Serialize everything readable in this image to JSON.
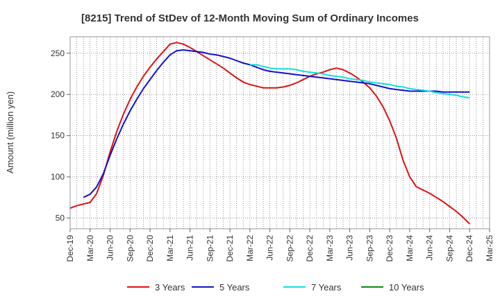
{
  "chart_data": {
    "type": "line",
    "title": "[8215]  Trend of StDev of 12-Month Moving Sum of Ordinary Incomes",
    "ylabel": "Amount (million yen)",
    "xlabel": "",
    "x_ticks": [
      "Dec-19",
      "Mar-20",
      "Jun-20",
      "Sep-20",
      "Dec-20",
      "Mar-21",
      "Jun-21",
      "Sep-21",
      "Dec-21",
      "Mar-22",
      "Jun-22",
      "Sep-22",
      "Dec-22",
      "Mar-23",
      "Jun-23",
      "Sep-23",
      "Dec-23",
      "Mar-24",
      "Jun-24",
      "Sep-24",
      "Dec-24",
      "Mar-25"
    ],
    "y_ticks": [
      50,
      100,
      150,
      200,
      250
    ],
    "ylim": [
      37,
      270
    ],
    "grid": "dotted",
    "legend_position": "bottom",
    "series": [
      {
        "name": "3 Years",
        "color": "#dd1111",
        "x": [
          "Dec-19",
          "Jan-20",
          "Feb-20",
          "Mar-20",
          "Apr-20",
          "May-20",
          "Jun-20",
          "Jul-20",
          "Aug-20",
          "Sep-20",
          "Oct-20",
          "Nov-20",
          "Dec-20",
          "Jan-21",
          "Feb-21",
          "Mar-21",
          "Apr-21",
          "May-21",
          "Jun-21",
          "Jul-21",
          "Aug-21",
          "Sep-21",
          "Oct-21",
          "Nov-21",
          "Dec-21",
          "Jan-22",
          "Feb-22",
          "Mar-22",
          "Apr-22",
          "May-22",
          "Jun-22",
          "Jul-22",
          "Aug-22",
          "Sep-22",
          "Oct-22",
          "Nov-22",
          "Dec-22",
          "Jan-23",
          "Feb-23",
          "Mar-23",
          "Apr-23",
          "May-23",
          "Jun-23",
          "Jul-23",
          "Aug-23",
          "Sep-23",
          "Oct-23",
          "Nov-23",
          "Dec-23",
          "Jan-24",
          "Feb-24",
          "Mar-24",
          "Apr-24",
          "May-24",
          "Jun-24",
          "Jul-24",
          "Aug-24",
          "Sep-24",
          "Oct-24",
          "Nov-24",
          "Dec-24"
        ],
        "values": [
          62,
          65,
          67,
          69,
          80,
          102,
          130,
          155,
          176,
          194,
          209,
          222,
          233,
          243,
          252,
          261,
          263,
          261,
          257,
          252,
          247,
          242,
          237,
          232,
          226,
          220,
          215,
          212,
          210,
          208,
          208,
          208,
          209,
          211,
          214,
          218,
          222,
          225,
          227,
          230,
          232,
          230,
          226,
          221,
          215,
          208,
          198,
          185,
          168,
          147,
          120,
          100,
          88,
          84,
          80,
          75,
          70,
          64,
          58,
          51,
          43
        ]
      },
      {
        "name": "5 Years",
        "color": "#1111cc",
        "x": [
          "Dec-19",
          "Jan-20",
          "Feb-20",
          "Mar-20",
          "Apr-20",
          "May-20",
          "Jun-20",
          "Jul-20",
          "Aug-20",
          "Sep-20",
          "Oct-20",
          "Nov-20",
          "Dec-20",
          "Jan-21",
          "Feb-21",
          "Mar-21",
          "Apr-21",
          "May-21",
          "Jun-21",
          "Jul-21",
          "Aug-21",
          "Sep-21",
          "Oct-21",
          "Nov-21",
          "Dec-21",
          "Jan-22",
          "Feb-22",
          "Mar-22",
          "Apr-22",
          "May-22",
          "Jun-22",
          "Jul-22",
          "Aug-22",
          "Sep-22",
          "Oct-22",
          "Nov-22",
          "Dec-22",
          "Jan-23",
          "Feb-23",
          "Mar-23",
          "Apr-23",
          "May-23",
          "Jun-23",
          "Jul-23",
          "Aug-23",
          "Sep-23",
          "Oct-23",
          "Nov-23",
          "Dec-23",
          "Jan-24",
          "Feb-24",
          "Mar-24",
          "Apr-24",
          "May-24",
          "Jun-24",
          "Jul-24",
          "Aug-24",
          "Sep-24",
          "Oct-24",
          "Nov-24",
          "Dec-24"
        ],
        "values": [
          null,
          null,
          75,
          79,
          88,
          104,
          126,
          146,
          164,
          180,
          194,
          207,
          218,
          229,
          239,
          248,
          253,
          254,
          253,
          252,
          251,
          249,
          248,
          246,
          244,
          241,
          238,
          236,
          233,
          230,
          228,
          227,
          226,
          225,
          224,
          223,
          222,
          221,
          220,
          219,
          218,
          217,
          216,
          215,
          214,
          213,
          211,
          209,
          207,
          206,
          205,
          204,
          204,
          204,
          204,
          204,
          203,
          203,
          203,
          203,
          203
        ]
      },
      {
        "name": "7 Years",
        "color": "#11dddd",
        "x": [
          "Dec-19",
          "Jan-20",
          "Feb-20",
          "Mar-20",
          "Apr-20",
          "May-20",
          "Jun-20",
          "Jul-20",
          "Aug-20",
          "Sep-20",
          "Oct-20",
          "Nov-20",
          "Dec-20",
          "Jan-21",
          "Feb-21",
          "Mar-21",
          "Apr-21",
          "May-21",
          "Jun-21",
          "Jul-21",
          "Aug-21",
          "Sep-21",
          "Oct-21",
          "Nov-21",
          "Dec-21",
          "Jan-22",
          "Feb-22",
          "Mar-22",
          "Apr-22",
          "May-22",
          "Jun-22",
          "Jul-22",
          "Aug-22",
          "Sep-22",
          "Oct-22",
          "Nov-22",
          "Dec-22",
          "Jan-23",
          "Feb-23",
          "Mar-23",
          "Apr-23",
          "May-23",
          "Jun-23",
          "Jul-23",
          "Aug-23",
          "Sep-23",
          "Oct-23",
          "Nov-23",
          "Dec-23",
          "Jan-24",
          "Feb-24",
          "Mar-24",
          "Apr-24",
          "May-24",
          "Jun-24",
          "Jul-24",
          "Aug-24",
          "Sep-24",
          "Oct-24",
          "Nov-24",
          "Dec-24"
        ],
        "values": [
          null,
          null,
          null,
          null,
          null,
          null,
          null,
          null,
          null,
          null,
          null,
          null,
          null,
          null,
          null,
          null,
          null,
          null,
          null,
          null,
          null,
          null,
          null,
          null,
          null,
          null,
          null,
          236,
          236,
          234,
          232,
          231,
          231,
          231,
          230,
          228,
          227,
          226,
          225,
          223,
          222,
          221,
          219,
          218,
          217,
          215,
          214,
          213,
          212,
          210,
          209,
          207,
          206,
          205,
          204,
          202,
          201,
          200,
          199,
          197,
          196
        ]
      },
      {
        "name": "10 Years",
        "color": "#118811",
        "x": [],
        "values": []
      }
    ]
  }
}
